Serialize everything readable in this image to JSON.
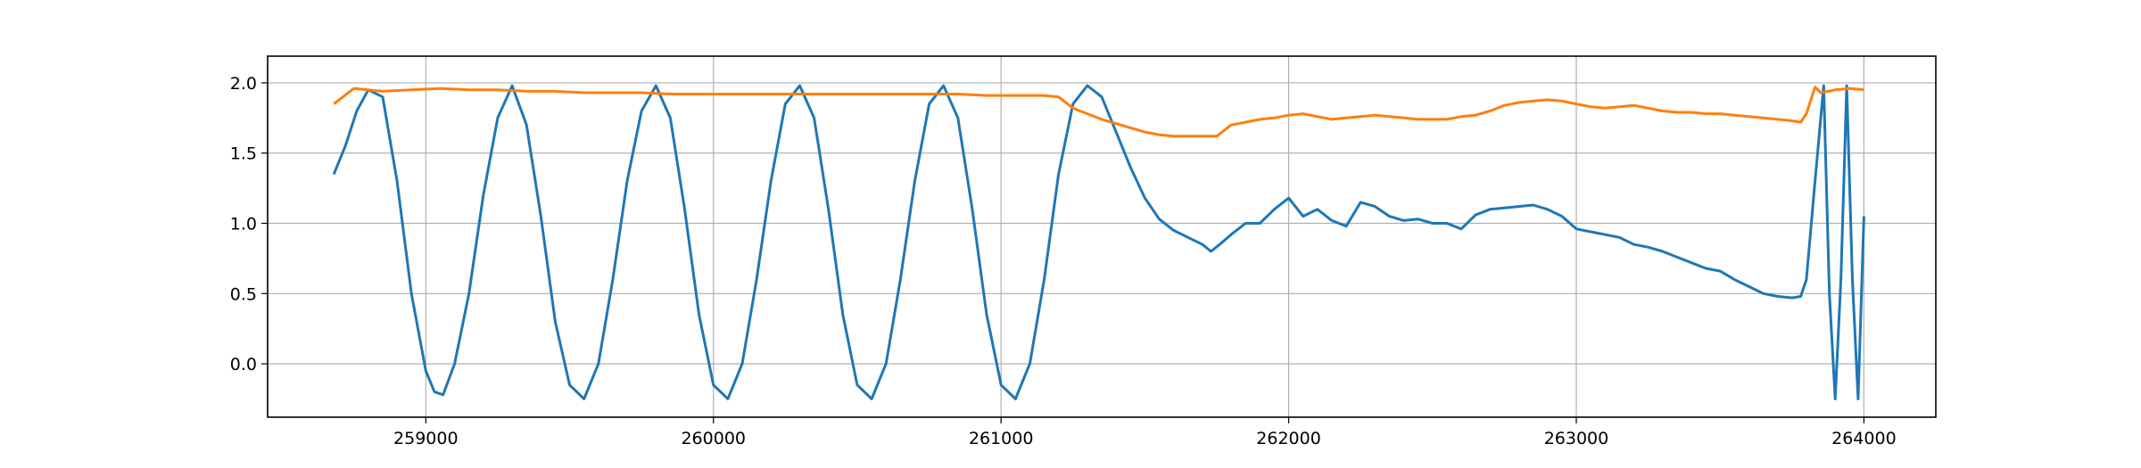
{
  "chart_data": {
    "type": "line",
    "title": "",
    "xlabel": "",
    "ylabel": "",
    "xlim": [
      258450,
      264250
    ],
    "ylim": [
      -0.38,
      2.19
    ],
    "grid": true,
    "x_ticks": [
      259000,
      260000,
      261000,
      262000,
      263000,
      264000
    ],
    "x_tick_labels": [
      "259000",
      "260000",
      "261000",
      "262000",
      "263000",
      "264000"
    ],
    "y_ticks": [
      0.0,
      0.5,
      1.0,
      1.5,
      2.0
    ],
    "y_tick_labels": [
      "0.0",
      "0.5",
      "1.0",
      "1.5",
      "2.0"
    ],
    "series": [
      {
        "color": "#1f77b4",
        "x": [
          258680,
          258720,
          258760,
          258800,
          258850,
          258900,
          258950,
          259000,
          259030,
          259060,
          259100,
          259150,
          259200,
          259250,
          259300,
          259350,
          259400,
          259450,
          259500,
          259550,
          259600,
          259650,
          259700,
          259750,
          259800,
          259850,
          259900,
          259950,
          260000,
          260050,
          260100,
          260150,
          260200,
          260250,
          260300,
          260350,
          260400,
          260450,
          260500,
          260550,
          260600,
          260650,
          260700,
          260750,
          260800,
          260850,
          260900,
          260950,
          261000,
          261050,
          261100,
          261150,
          261200,
          261250,
          261300,
          261350,
          261400,
          261450,
          261500,
          261550,
          261600,
          261650,
          261700,
          261730,
          261760,
          261800,
          261850,
          261900,
          261950,
          262000,
          262050,
          262100,
          262150,
          262200,
          262250,
          262300,
          262350,
          262400,
          262450,
          262500,
          262550,
          262600,
          262650,
          262700,
          262750,
          262800,
          262850,
          262900,
          262950,
          263000,
          263050,
          263100,
          263150,
          263200,
          263250,
          263300,
          263350,
          263400,
          263450,
          263500,
          263550,
          263600,
          263650,
          263700,
          263750,
          263780,
          263800,
          263830,
          263860,
          263880,
          263900,
          263920,
          263940,
          263960,
          263980,
          264000
        ],
        "y": [
          1.35,
          1.55,
          1.8,
          1.95,
          1.9,
          1.3,
          0.5,
          -0.05,
          -0.2,
          -0.22,
          0.0,
          0.5,
          1.2,
          1.75,
          1.98,
          1.7,
          1.05,
          0.3,
          -0.15,
          -0.25,
          0.0,
          0.6,
          1.3,
          1.8,
          1.98,
          1.75,
          1.1,
          0.35,
          -0.15,
          -0.25,
          0.0,
          0.6,
          1.3,
          1.85,
          1.98,
          1.75,
          1.1,
          0.35,
          -0.15,
          -0.25,
          0.0,
          0.6,
          1.3,
          1.85,
          1.98,
          1.75,
          1.1,
          0.35,
          -0.15,
          -0.25,
          0.0,
          0.6,
          1.35,
          1.85,
          1.98,
          1.9,
          1.65,
          1.4,
          1.18,
          1.03,
          0.95,
          0.9,
          0.85,
          0.8,
          0.85,
          0.92,
          1.0,
          1.0,
          1.1,
          1.18,
          1.05,
          1.1,
          1.02,
          0.98,
          1.15,
          1.12,
          1.05,
          1.02,
          1.03,
          1.0,
          1.0,
          0.96,
          1.06,
          1.1,
          1.11,
          1.12,
          1.13,
          1.1,
          1.05,
          0.96,
          0.94,
          0.92,
          0.9,
          0.85,
          0.83,
          0.8,
          0.76,
          0.72,
          0.68,
          0.66,
          0.6,
          0.55,
          0.5,
          0.48,
          0.47,
          0.48,
          0.6,
          1.3,
          1.98,
          0.5,
          -0.25,
          0.6,
          1.98,
          0.6,
          -0.25,
          1.05
        ]
      },
      {
        "color": "#ff7f0e",
        "x": [
          258680,
          258750,
          258850,
          258950,
          259050,
          259150,
          259250,
          259350,
          259450,
          259550,
          259650,
          259750,
          259850,
          259950,
          260050,
          260150,
          260250,
          260350,
          260450,
          260550,
          260650,
          260750,
          260850,
          260950,
          261050,
          261150,
          261200,
          261250,
          261300,
          261350,
          261400,
          261450,
          261500,
          261550,
          261600,
          261650,
          261700,
          261750,
          261800,
          261850,
          261900,
          261950,
          262000,
          262050,
          262100,
          262150,
          262200,
          262250,
          262300,
          262350,
          262400,
          262450,
          262500,
          262550,
          262600,
          262650,
          262700,
          262750,
          262800,
          262850,
          262900,
          262950,
          263000,
          263050,
          263100,
          263150,
          263200,
          263250,
          263300,
          263350,
          263400,
          263450,
          263500,
          263550,
          263600,
          263650,
          263700,
          263750,
          263780,
          263800,
          263830,
          263850,
          263900,
          263950,
          264000
        ],
        "y": [
          1.85,
          1.96,
          1.94,
          1.95,
          1.96,
          1.95,
          1.95,
          1.94,
          1.94,
          1.93,
          1.93,
          1.93,
          1.92,
          1.92,
          1.92,
          1.92,
          1.92,
          1.92,
          1.92,
          1.92,
          1.92,
          1.92,
          1.92,
          1.91,
          1.91,
          1.91,
          1.9,
          1.82,
          1.78,
          1.74,
          1.71,
          1.68,
          1.65,
          1.63,
          1.62,
          1.62,
          1.62,
          1.62,
          1.7,
          1.72,
          1.74,
          1.75,
          1.77,
          1.78,
          1.76,
          1.74,
          1.75,
          1.76,
          1.77,
          1.76,
          1.75,
          1.74,
          1.74,
          1.74,
          1.76,
          1.77,
          1.8,
          1.84,
          1.86,
          1.87,
          1.88,
          1.87,
          1.85,
          1.83,
          1.82,
          1.83,
          1.84,
          1.82,
          1.8,
          1.79,
          1.79,
          1.78,
          1.78,
          1.77,
          1.76,
          1.75,
          1.74,
          1.73,
          1.72,
          1.78,
          1.97,
          1.93,
          1.95,
          1.96,
          1.95
        ]
      }
    ]
  }
}
